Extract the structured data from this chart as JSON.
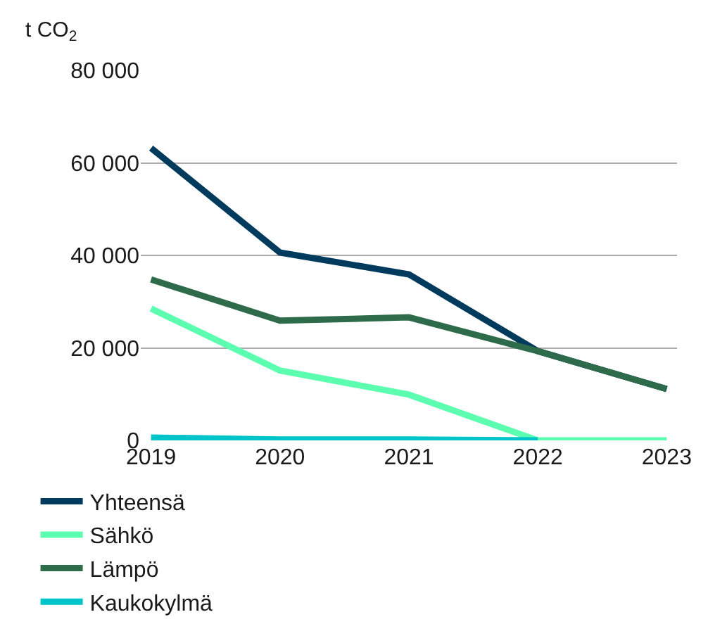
{
  "chart_data": {
    "type": "line",
    "ylabel": "t CO$_{2}$",
    "categories": [
      "2019",
      "2020",
      "2021",
      "2022",
      "2023"
    ],
    "series": [
      {
        "name": "Yhteensä",
        "color": "#003a5d",
        "values": [
          63200,
          40600,
          35900,
          19300,
          11100
        ]
      },
      {
        "name": "Sähkö",
        "color": "#5cffb0",
        "values": [
          28500,
          15100,
          9900,
          0,
          0
        ]
      },
      {
        "name": "Lämpö",
        "color": "#2e6b4a",
        "values": [
          34800,
          25900,
          26600,
          19300,
          11100
        ]
      },
      {
        "name": "Kaukokylmä",
        "color": "#00c4c8",
        "values": [
          600,
          200,
          200,
          0,
          null
        ]
      }
    ],
    "ylim": [
      0,
      80000
    ],
    "yticks": [
      {
        "value": 0,
        "label": "0"
      },
      {
        "value": 20000,
        "label": "20 000"
      },
      {
        "value": 40000,
        "label": "40 000"
      },
      {
        "value": 60000,
        "label": "60 000"
      },
      {
        "value": 80000,
        "label": "80 000"
      }
    ],
    "grid": "y",
    "legend": "bottom",
    "marker": "none",
    "line_style": "solid"
  }
}
